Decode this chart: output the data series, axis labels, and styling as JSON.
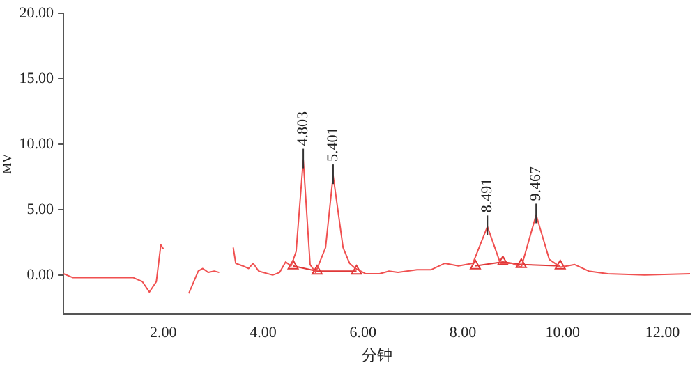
{
  "chart_data": {
    "type": "line",
    "xlabel": "分钟",
    "ylabel": "MV",
    "xlim": [
      0,
      12.55
    ],
    "ylim": [
      -3,
      20
    ],
    "xticks": [
      {
        "value": 2,
        "label": "2.00"
      },
      {
        "value": 4,
        "label": "4.00"
      },
      {
        "value": 6,
        "label": "6.00"
      },
      {
        "value": 8,
        "label": "8.00"
      },
      {
        "value": 10,
        "label": "10.00"
      },
      {
        "value": 12,
        "label": "12.00"
      }
    ],
    "yticks": [
      {
        "value": 0,
        "label": "0.00"
      },
      {
        "value": 5,
        "label": "5.00"
      },
      {
        "value": 10,
        "label": "10.00"
      },
      {
        "value": 15,
        "label": "15.00"
      },
      {
        "value": 20,
        "label": "20.00"
      }
    ],
    "grid": false,
    "legend": false,
    "marker": "none",
    "line_style": "solid",
    "series": [
      {
        "color": "#f05050",
        "x": [
          0,
          0.19,
          1.4,
          1.58,
          1.72,
          1.86,
          1.95,
          2.0,
          2.03,
          2.33,
          2.36,
          2.47,
          2.51,
          2.7,
          2.79,
          2.9,
          3.02,
          3.12,
          3.17,
          3.35,
          3.4,
          3.45,
          3.59,
          3.71,
          3.8,
          3.91,
          4.19,
          4.33,
          4.45,
          4.56,
          4.66,
          4.803,
          4.94,
          5.05,
          5.25,
          5.401,
          5.6,
          5.73,
          5.85,
          6.05,
          6.33,
          6.52,
          6.7,
          7.08,
          7.36,
          7.64,
          7.91,
          8.2,
          8.491,
          8.75,
          8.98,
          9.17,
          9.467,
          9.73,
          9.96,
          10.24,
          10.52,
          10.9,
          11.64,
          12.55
        ],
        "values": [
          0.1,
          -0.2,
          -0.2,
          -0.5,
          -1.3,
          -0.5,
          2.3,
          2.0,
          null,
          null,
          null,
          null,
          -1.4,
          0.3,
          0.5,
          0.2,
          0.3,
          0.2,
          null,
          null,
          2.1,
          0.9,
          0.7,
          0.5,
          0.9,
          0.3,
          0,
          0.2,
          1.0,
          0.7,
          1.8,
          8.8,
          0.8,
          0.2,
          2.1,
          7.6,
          2.1,
          0.9,
          0.5,
          0.1,
          0.1,
          0.3,
          0.2,
          0.4,
          0.4,
          0.9,
          0.7,
          0.9,
          3.7,
          0.9,
          0.9,
          0.6,
          4.6,
          1.2,
          0.6,
          0.8,
          0.3,
          0.1,
          0,
          0.1
        ]
      },
      {
        "color": "#e03838",
        "marker": "triangle",
        "x": [
          4.6,
          5.08,
          5.87,
          7.0,
          8.25,
          8.8,
          9.17,
          9.95
        ],
        "values": [
          0.7,
          0.3,
          0.3,
          null,
          0.7,
          1.0,
          0.8,
          0.7
        ]
      }
    ],
    "annotations": [
      {
        "text": "4.803",
        "x": 4.803,
        "y": 8.8
      },
      {
        "text": "5.401",
        "x": 5.401,
        "y": 7.6
      },
      {
        "text": "8.491",
        "x": 8.491,
        "y": 3.7
      },
      {
        "text": "9.467",
        "x": 9.467,
        "y": 4.6
      }
    ]
  }
}
